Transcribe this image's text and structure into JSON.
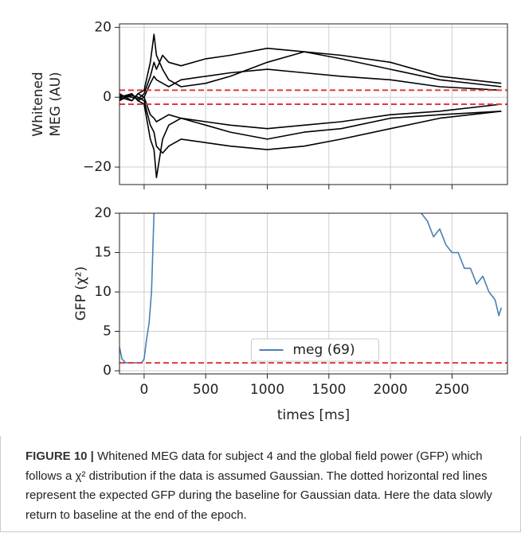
{
  "chart_data": [
    {
      "type": "line",
      "ylabel": [
        "Whitened",
        "MEG (AU)"
      ],
      "xlim": [
        -200,
        2950
      ],
      "ylim": [
        -25,
        21
      ],
      "yticks": [
        20,
        0,
        {
          "value": -20,
          "label": "−20"
        }
      ],
      "grid": true,
      "hlines": [
        2,
        -2
      ],
      "hline_color": "#e0393e",
      "x": [
        -200,
        -100,
        -50,
        0,
        50,
        80,
        100,
        150,
        200,
        300,
        500,
        700,
        1000,
        1300,
        1600,
        2000,
        2400,
        2900
      ],
      "series": [
        {
          "color": "#000000",
          "values": [
            1,
            -1,
            1,
            2,
            10,
            18,
            12,
            8,
            5,
            3,
            4,
            6,
            10,
            13,
            11,
            8,
            5,
            3
          ]
        },
        {
          "color": "#000000",
          "values": [
            -1,
            1,
            -1,
            -2,
            -12,
            -15,
            -23,
            -12,
            -8,
            -6,
            -8,
            -10,
            -12,
            -10,
            -9,
            -6,
            -5,
            -4
          ]
        },
        {
          "color": "#000000",
          "values": [
            0.5,
            0,
            -0.5,
            1,
            6,
            10,
            8,
            12,
            10,
            9,
            11,
            12,
            14,
            13,
            12,
            10,
            6,
            4
          ]
        },
        {
          "color": "#000000",
          "values": [
            -0.5,
            0.5,
            0,
            -1,
            -8,
            -10,
            -14,
            -16,
            -14,
            -12,
            -13,
            -14,
            -15,
            -14,
            -12,
            -9,
            -6,
            -4
          ]
        },
        {
          "color": "#000000",
          "values": [
            0,
            1,
            -1,
            0,
            4,
            6,
            5,
            4,
            3,
            5,
            6,
            7,
            8,
            7,
            6,
            5,
            3,
            2
          ]
        },
        {
          "color": "#000000",
          "values": [
            0,
            -1,
            1,
            0,
            -5,
            -6,
            -7,
            -6,
            -5,
            -6,
            -7,
            -8,
            -9,
            -8,
            -7,
            -5,
            -4,
            -2
          ]
        }
      ]
    },
    {
      "type": "line",
      "ylabel": "GFP (χ²)",
      "xlabel": "times [ms]",
      "xlim": [
        -200,
        2950
      ],
      "ylim": [
        -0.4,
        20
      ],
      "xticks": [
        0,
        500,
        1000,
        1500,
        2000,
        2500
      ],
      "yticks": [
        20,
        15,
        10,
        5,
        0
      ],
      "grid": true,
      "legend": "lower center",
      "hlines": [
        1
      ],
      "hline_color": "#e0393e",
      "x": [
        -200,
        -180,
        -150,
        -100,
        -50,
        -20,
        0,
        20,
        40,
        60,
        80,
        1000,
        2250,
        2300,
        2350,
        2400,
        2450,
        2500,
        2550,
        2600,
        2650,
        2700,
        2750,
        2800,
        2850,
        2880,
        2900
      ],
      "series": [
        {
          "name": "meg (69)",
          "color": "#4a7fb5",
          "values": [
            3,
            1.5,
            1,
            1,
            1,
            1,
            1.5,
            4,
            6,
            10,
            20,
            null,
            20,
            19,
            17,
            18,
            16,
            15,
            15,
            13,
            13,
            11,
            12,
            10,
            9,
            7,
            8
          ]
        }
      ]
    }
  ],
  "caption": {
    "label": "FIGURE 10 |",
    "text": "Whitened MEG data for subject 4 and the global field power (GFP) which follows a χ² distribution if the data is assumed Gaussian. The dotted horizontal red lines represent the expected GFP during the baseline for Gaussian data. Here the data slowly return to baseline at the end of the epoch."
  }
}
